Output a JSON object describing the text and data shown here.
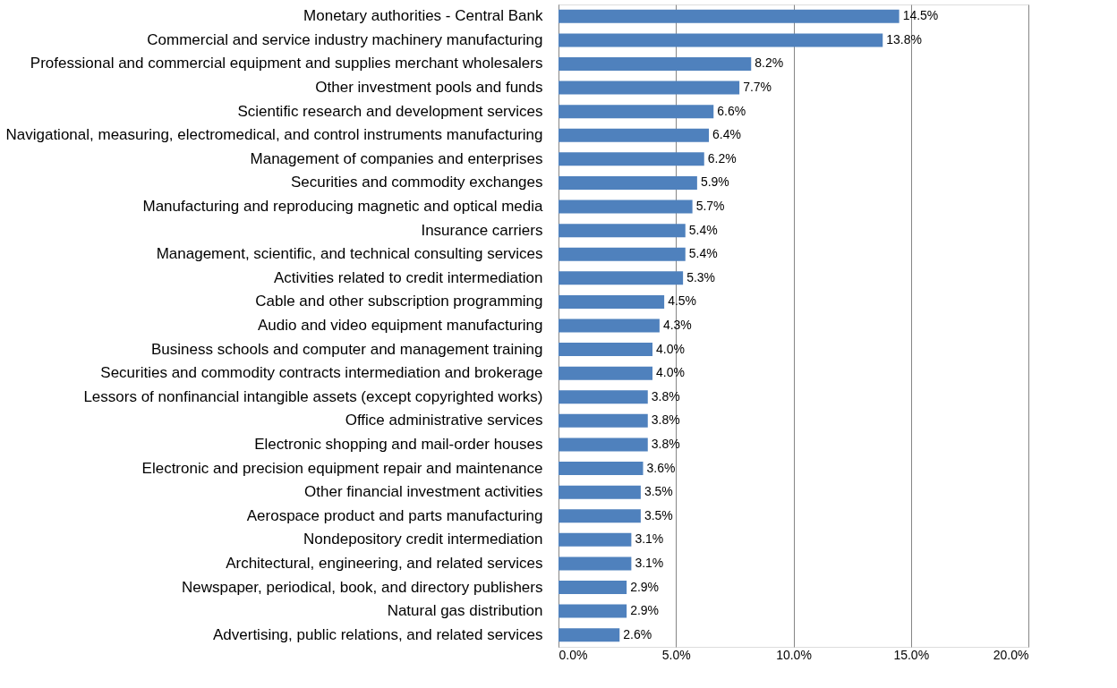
{
  "chart_data": {
    "type": "bar",
    "orientation": "horizontal",
    "categories": [
      "Monetary authorities - Central Bank",
      "Commercial and service industry machinery manufacturing",
      "Professional and commercial equipment and supplies merchant wholesalers",
      "Other investment pools and funds",
      "Scientific research and development services",
      "Navigational, measuring, electromedical, and control instruments manufacturing",
      "Management of companies and enterprises",
      "Securities and commodity exchanges",
      "Manufacturing and reproducing magnetic and optical media",
      "Insurance carriers",
      "Management, scientific, and technical consulting services",
      "Activities related to credit intermediation",
      "Cable and other subscription programming",
      "Audio and video equipment manufacturing",
      "Business schools and computer and management training",
      "Securities and commodity contracts intermediation and brokerage",
      "Lessors of nonfinancial intangible assets (except copyrighted works)",
      "Office administrative services",
      "Electronic shopping and mail-order houses",
      "Electronic and precision equipment repair and maintenance",
      "Other financial investment activities",
      "Aerospace product and parts manufacturing",
      "Nondepository credit intermediation",
      "Architectural, engineering, and related services",
      "Newspaper, periodical, book, and directory publishers",
      "Natural gas distribution",
      "Advertising, public relations, and related services"
    ],
    "values": [
      14.5,
      13.8,
      8.2,
      7.7,
      6.6,
      6.4,
      6.2,
      5.9,
      5.7,
      5.4,
      5.4,
      5.3,
      4.5,
      4.3,
      4.0,
      4.0,
      3.8,
      3.8,
      3.8,
      3.6,
      3.5,
      3.5,
      3.1,
      3.1,
      2.9,
      2.9,
      2.6
    ],
    "value_labels": [
      "14.5%",
      "13.8%",
      "8.2%",
      "7.7%",
      "6.6%",
      "6.4%",
      "6.2%",
      "5.9%",
      "5.7%",
      "5.4%",
      "5.4%",
      "5.3%",
      "4.5%",
      "4.3%",
      "4.0%",
      "4.0%",
      "3.8%",
      "3.8%",
      "3.8%",
      "3.6%",
      "3.5%",
      "3.5%",
      "3.1%",
      "3.1%",
      "2.9%",
      "2.9%",
      "2.6%"
    ],
    "color": "#4f81bd",
    "xlim": [
      0,
      20
    ],
    "xticks": [
      {
        "value": 0,
        "label": "0.0%"
      },
      {
        "value": 5,
        "label": "5.0%"
      },
      {
        "value": 10,
        "label": "10.0%"
      },
      {
        "value": 15,
        "label": "15.0%"
      },
      {
        "value": 20,
        "label": "20.0%"
      }
    ],
    "grid": "x"
  }
}
